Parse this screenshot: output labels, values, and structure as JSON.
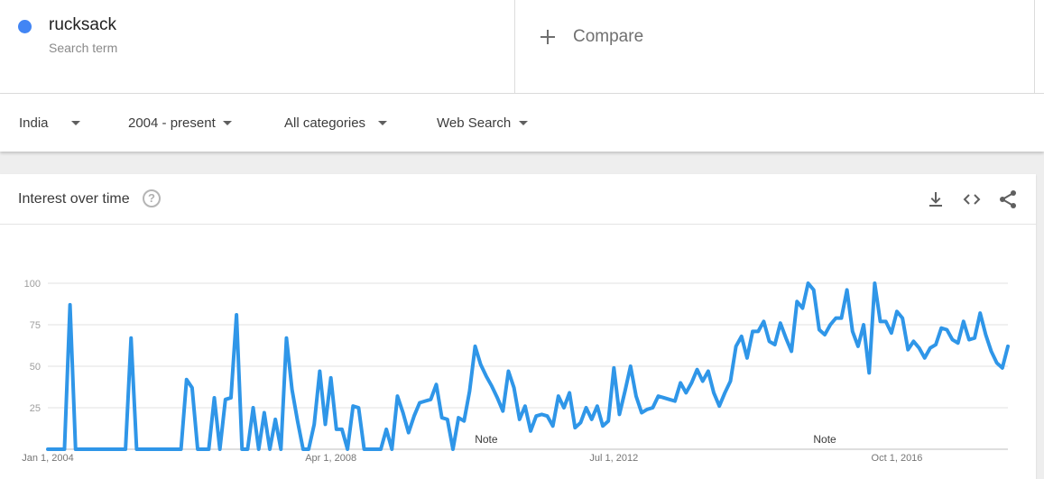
{
  "search_term": {
    "name": "rucksack",
    "subtitle": "Search term",
    "color": "#4285f4"
  },
  "compare": {
    "label": "Compare"
  },
  "filters": [
    {
      "label": "India"
    },
    {
      "label": "2004 - present"
    },
    {
      "label": "All categories"
    },
    {
      "label": "Web Search"
    }
  ],
  "card": {
    "title": "Interest over time",
    "help_glyph": "?",
    "icons": [
      "download-icon",
      "embed-code-icon",
      "share-icon"
    ]
  },
  "chart_data": {
    "type": "line",
    "title": "Interest over time",
    "x_start": "2004-01",
    "x_step": "month",
    "ylim": [
      0,
      100
    ],
    "y_ticks": [
      25,
      50,
      75,
      100
    ],
    "x_tick_labels": [
      {
        "label": "Jan 1, 2004",
        "month_index": 0
      },
      {
        "label": "Apr 1, 2008",
        "month_index": 51
      },
      {
        "label": "Jul 1, 2012",
        "month_index": 102
      },
      {
        "label": "Oct 1, 2016",
        "month_index": 153
      }
    ],
    "notes": [
      {
        "label": "Note",
        "month_index": 79
      },
      {
        "label": "Note",
        "month_index": 140
      }
    ],
    "grid": true,
    "line_color": "#2f96e8",
    "series": [
      {
        "values": [
          0,
          0,
          0,
          0,
          87,
          0,
          0,
          0,
          0,
          0,
          0,
          0,
          0,
          0,
          0,
          67,
          0,
          0,
          0,
          0,
          0,
          0,
          0,
          0,
          0,
          42,
          37,
          0,
          0,
          0,
          31,
          0,
          30,
          31,
          81,
          0,
          0,
          25,
          0,
          22,
          0,
          18,
          0,
          67,
          36,
          17,
          0,
          0,
          15,
          47,
          15,
          43,
          12,
          12,
          0,
          26,
          25,
          0,
          0,
          0,
          0,
          12,
          0,
          32,
          22,
          10,
          20,
          28,
          29,
          30,
          39,
          19,
          18,
          0,
          19,
          17,
          35,
          62,
          51,
          44,
          38,
          31,
          23,
          47,
          37,
          18,
          26,
          11,
          20,
          21,
          20,
          14,
          32,
          25,
          34,
          13,
          16,
          25,
          18,
          26,
          14,
          17,
          49,
          21,
          35,
          50,
          32,
          22,
          24,
          25,
          32,
          31,
          30,
          29,
          40,
          34,
          40,
          48,
          41,
          47,
          34,
          26,
          34,
          41,
          62,
          68,
          55,
          71,
          71,
          77,
          65,
          63,
          76,
          67,
          59,
          89,
          85,
          100,
          96,
          72,
          69,
          75,
          79,
          79,
          96,
          71,
          62,
          75,
          46,
          100,
          77,
          77,
          70,
          83,
          79,
          60,
          65,
          61,
          55,
          61,
          63,
          73,
          72,
          66,
          64,
          77,
          66,
          67,
          82,
          69,
          59,
          52,
          49,
          62
        ]
      }
    ]
  }
}
